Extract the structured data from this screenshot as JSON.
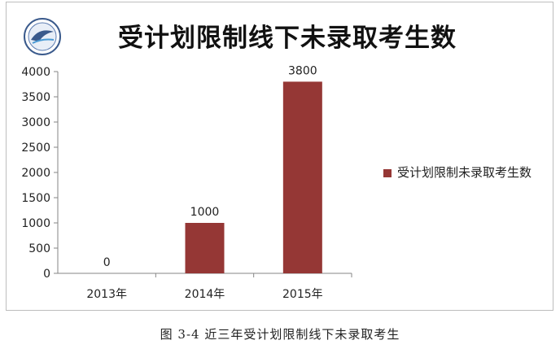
{
  "logo": {
    "icon": "university-logo-icon"
  },
  "caption": "图  3-4   近三年受计划限制线下未录取考生",
  "chart_data": {
    "type": "bar",
    "title": "受计划限制线下未录取考生数",
    "categories": [
      "2013年",
      "2014年",
      "2015年"
    ],
    "series": [
      {
        "name": "受计划限制未录取考生数",
        "values": [
          0,
          1000,
          3800
        ],
        "color": "#953735"
      }
    ],
    "data_labels": [
      "0",
      "1000",
      "3800"
    ],
    "ylim": [
      0,
      4000
    ],
    "yticks": [
      "0",
      "500",
      "1000",
      "1500",
      "2000",
      "2500",
      "3000",
      "3500",
      "4000"
    ],
    "xlabel": "",
    "ylabel": "",
    "grid": false,
    "legend_position": "right"
  }
}
